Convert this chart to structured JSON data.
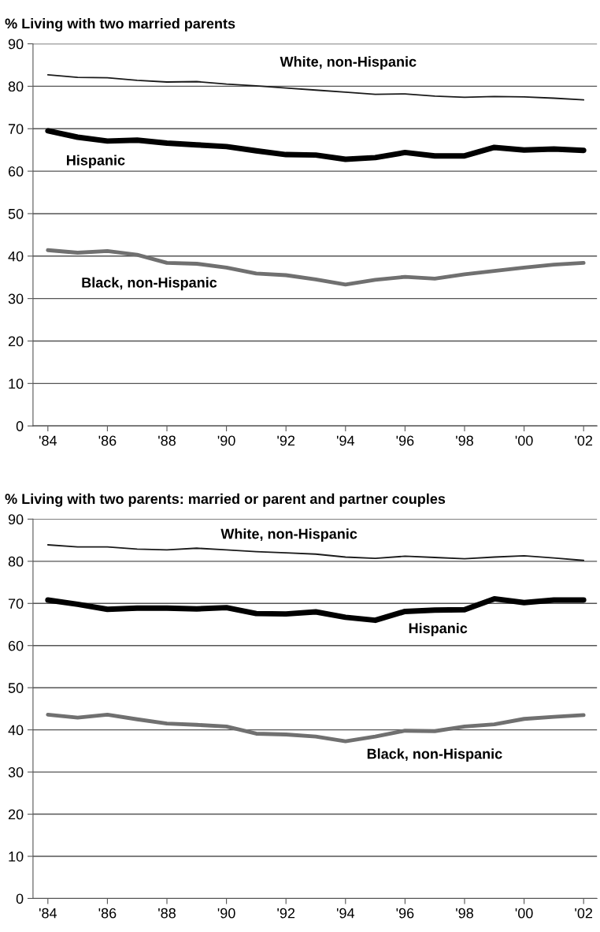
{
  "chart_data": [
    {
      "type": "line",
      "title": "% Living with two married parents",
      "x": [
        1984,
        1985,
        1986,
        1987,
        1988,
        1989,
        1990,
        1991,
        1992,
        1993,
        1994,
        1995,
        1996,
        1997,
        1998,
        1999,
        2000,
        2001,
        2002
      ],
      "series": [
        {
          "name": "White, non-Hispanic",
          "color": "#1a1a1a",
          "values": [
            82.7,
            82.1,
            82.0,
            81.4,
            81.0,
            81.1,
            80.5,
            80.1,
            79.6,
            79.1,
            78.6,
            78.1,
            78.2,
            77.7,
            77.4,
            77.6,
            77.5,
            77.2,
            76.8
          ]
        },
        {
          "name": "Hispanic",
          "color": "#000000",
          "values": [
            69.5,
            68.0,
            67.1,
            67.3,
            66.6,
            66.2,
            65.8,
            64.8,
            63.9,
            63.8,
            62.8,
            63.2,
            64.4,
            63.6,
            63.6,
            65.6,
            65.0,
            65.2,
            64.9
          ]
        },
        {
          "name": "Black, non-Hispanic",
          "color": "#707070",
          "values": [
            41.4,
            40.8,
            41.2,
            40.3,
            38.4,
            38.2,
            37.3,
            35.9,
            35.5,
            34.5,
            33.3,
            34.4,
            35.1,
            34.7,
            35.7,
            36.5,
            37.3,
            38.0,
            38.4
          ]
        }
      ],
      "xlim": [
        1983.5,
        2002.45
      ],
      "xticks": [
        {
          "value": 1984,
          "label": "'84"
        },
        {
          "value": 1986,
          "label": "'86"
        },
        {
          "value": 1988,
          "label": "'88"
        },
        {
          "value": 1990,
          "label": "'90"
        },
        {
          "value": 1992,
          "label": "'92"
        },
        {
          "value": 1994,
          "label": "'94"
        },
        {
          "value": 1996,
          "label": "'96"
        },
        {
          "value": 1998,
          "label": "'98"
        },
        {
          "value": 2000,
          "label": "'00"
        },
        {
          "value": 2002,
          "label": "'02"
        }
      ],
      "ylim": [
        0,
        90
      ],
      "yticks": [
        0,
        10,
        20,
        30,
        40,
        50,
        60,
        70,
        80,
        90
      ],
      "grid": "y",
      "marker": "none",
      "line_style": "solid"
    },
    {
      "type": "line",
      "title": "% Living with two parents: married or parent and partner couples",
      "x": [
        1984,
        1985,
        1986,
        1987,
        1988,
        1989,
        1990,
        1991,
        1992,
        1993,
        1994,
        1995,
        1996,
        1997,
        1998,
        1999,
        2000,
        2001,
        2002
      ],
      "series": [
        {
          "name": "White, non-Hispanic",
          "color": "#1a1a1a",
          "values": [
            83.9,
            83.4,
            83.4,
            82.9,
            82.7,
            83.1,
            82.7,
            82.3,
            82.0,
            81.7,
            81.0,
            80.7,
            81.2,
            80.9,
            80.6,
            81.0,
            81.3,
            80.8,
            80.2
          ]
        },
        {
          "name": "Hispanic",
          "color": "#000000",
          "values": [
            70.8,
            69.8,
            68.6,
            68.9,
            68.9,
            68.7,
            69.0,
            67.6,
            67.5,
            68.0,
            66.7,
            66.0,
            68.1,
            68.4,
            68.5,
            71.1,
            70.2,
            70.8,
            70.8
          ]
        },
        {
          "name": "Black, non-Hispanic",
          "color": "#707070",
          "values": [
            43.6,
            42.9,
            43.6,
            42.5,
            41.5,
            41.2,
            40.8,
            39.1,
            38.9,
            38.4,
            37.3,
            38.4,
            39.8,
            39.7,
            40.8,
            41.3,
            42.6,
            43.1,
            43.5
          ]
        }
      ],
      "xlim": [
        1983.5,
        2002.45
      ],
      "xticks": [
        {
          "value": 1984,
          "label": "'84"
        },
        {
          "value": 1986,
          "label": "'86"
        },
        {
          "value": 1988,
          "label": "'88"
        },
        {
          "value": 1990,
          "label": "'90"
        },
        {
          "value": 1992,
          "label": "'92"
        },
        {
          "value": 1994,
          "label": "'94"
        },
        {
          "value": 1996,
          "label": "'96"
        },
        {
          "value": 1998,
          "label": "'98"
        },
        {
          "value": 2000,
          "label": "'00"
        },
        {
          "value": 2002,
          "label": "'02"
        }
      ],
      "ylim": [
        0,
        90
      ],
      "yticks": [
        0,
        10,
        20,
        30,
        40,
        50,
        60,
        70,
        80,
        90
      ],
      "grid": "y",
      "marker": "none",
      "line_style": "solid"
    }
  ]
}
